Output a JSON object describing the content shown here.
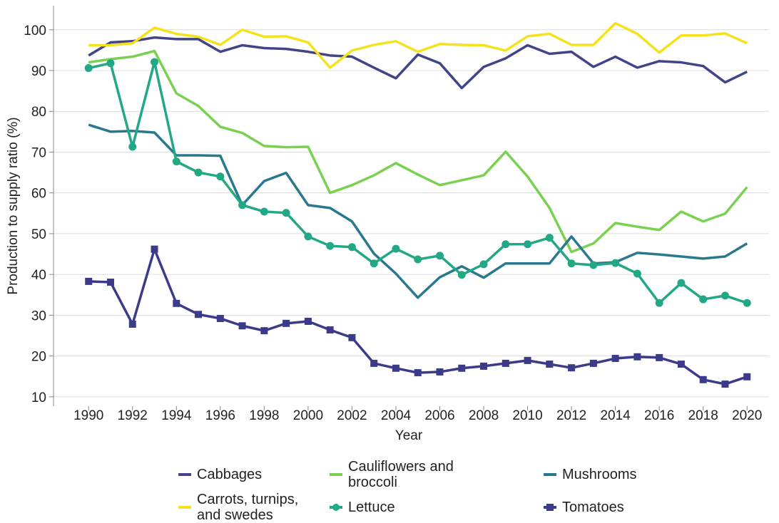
{
  "chart_data": {
    "type": "line",
    "x_label": "Year",
    "y_label": "Production to supply ratio (%)",
    "x": [
      1990,
      1991,
      1992,
      1993,
      1994,
      1995,
      1996,
      1997,
      1998,
      1999,
      2000,
      2001,
      2002,
      2003,
      2004,
      2005,
      2006,
      2007,
      2008,
      2009,
      2010,
      2011,
      2012,
      2013,
      2014,
      2015,
      2016,
      2017,
      2018,
      2019,
      2020
    ],
    "xlim": [
      1988.4,
      2021
    ],
    "xticks": [
      1990,
      1992,
      1994,
      1996,
      1998,
      2000,
      2002,
      2004,
      2006,
      2008,
      2010,
      2012,
      2014,
      2016,
      2018,
      2020
    ],
    "ylim": [
      7.7,
      105.9
    ],
    "yticks": [
      10,
      20,
      30,
      40,
      50,
      60,
      70,
      80,
      90,
      100
    ],
    "grid": true,
    "series": [
      {
        "name": "Cabbages",
        "color": "#414487",
        "marker": "none",
        "values": [
          93.7,
          96.9,
          97.2,
          98.1,
          97.7,
          97.7,
          94.6,
          96.2,
          95.5,
          95.3,
          94.6,
          93.7,
          93.4,
          90.7,
          88.1,
          93.9,
          91.8,
          85.7,
          90.9,
          93.0,
          96.2,
          94.1,
          94.6,
          90.9,
          93.4,
          90.7,
          92.3,
          92.0,
          91.1,
          87.1,
          89.7
        ]
      },
      {
        "name": "Cauliflowers and broccoli",
        "color": "#7ad151",
        "marker": "none",
        "values": [
          92.0,
          92.8,
          93.4,
          94.8,
          84.4,
          81.3,
          76.2,
          74.7,
          71.5,
          71.2,
          71.3,
          60.0,
          61.9,
          64.3,
          67.3,
          64.5,
          61.9,
          63.1,
          64.3,
          70.1,
          64.0,
          56.3,
          45.5,
          47.6,
          52.6,
          51.7,
          50.9,
          55.4,
          53.0,
          54.9,
          61.4
        ]
      },
      {
        "name": "Mushrooms",
        "color": "#2a788e",
        "marker": "none",
        "values": [
          76.7,
          75.0,
          75.2,
          74.8,
          69.2,
          69.2,
          69.1,
          57.0,
          62.9,
          64.9,
          57.0,
          56.3,
          53.0,
          45.1,
          40.2,
          34.3,
          39.3,
          42.0,
          39.2,
          42.7,
          42.7,
          42.7,
          49.3,
          42.7,
          43.0,
          45.3,
          44.9,
          44.4,
          43.9,
          44.4,
          47.6
        ]
      },
      {
        "name": "Carrots, turnips, and swedes",
        "color": "#f5e21e",
        "marker": "none",
        "values": [
          96.2,
          96.2,
          96.7,
          100.5,
          99.0,
          98.3,
          96.3,
          100.0,
          98.3,
          98.4,
          96.9,
          90.7,
          94.9,
          96.3,
          97.2,
          94.6,
          96.5,
          96.3,
          96.2,
          94.9,
          98.4,
          99.0,
          96.3,
          96.3,
          101.6,
          99.0,
          94.4,
          98.6,
          98.6,
          99.1,
          96.7
        ]
      },
      {
        "name": "Lettuce",
        "color": "#22a884",
        "marker": "circle",
        "values": [
          90.6,
          91.8,
          71.3,
          92.1,
          67.7,
          65.0,
          64.0,
          57.0,
          55.4,
          55.1,
          49.3,
          47.0,
          46.7,
          42.7,
          46.3,
          43.7,
          44.6,
          39.9,
          42.5,
          47.4,
          47.4,
          49.0,
          42.7,
          42.3,
          42.8,
          40.2,
          33.0,
          37.9,
          33.9,
          34.8,
          33.0
        ]
      },
      {
        "name": "Tomatoes",
        "color": "#3b3b8a",
        "marker": "square",
        "values": [
          38.3,
          38.1,
          27.8,
          46.2,
          32.9,
          30.2,
          29.2,
          27.4,
          26.2,
          28.0,
          28.5,
          26.4,
          24.5,
          18.2,
          17.0,
          15.9,
          16.1,
          17.0,
          17.5,
          18.2,
          18.9,
          18.0,
          17.1,
          18.2,
          19.4,
          19.8,
          19.6,
          18.0,
          14.2,
          13.1,
          14.9
        ]
      }
    ]
  }
}
